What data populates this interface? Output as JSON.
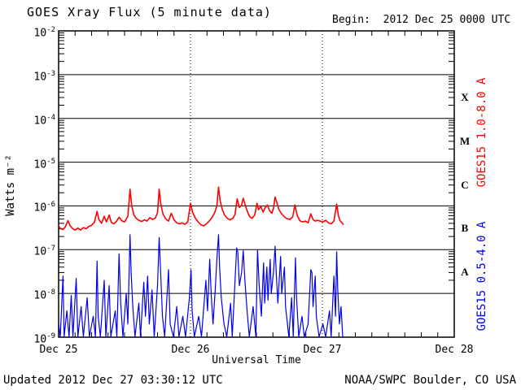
{
  "header": {
    "title": "GOES Xray Flux (5 minute data)",
    "begin_label": "Begin:  2012 Dec 25 0000 UTC"
  },
  "footer": {
    "updated": "Updated 2012 Dec 27 03:30:12 UTC",
    "source": "NOAA/SWPC Boulder, CO USA"
  },
  "colors": {
    "long_wave": "#ff0000",
    "short_wave": "#0000ee",
    "axis": "#000000",
    "background": "#ffffff"
  },
  "chart_data": {
    "type": "line",
    "title": "GOES Xray Flux (5 minute data)",
    "xlabel": "Universal Time",
    "ylabel": "Watts m⁻²",
    "y_scale": "log",
    "y_tick_exponents": [
      -2,
      -3,
      -4,
      -5,
      -6,
      -7,
      -8,
      -9
    ],
    "ylim": [
      1e-09,
      0.01
    ],
    "xlim_hours": [
      0,
      72
    ],
    "begin_time": "2012 Dec 25 0000 UTC",
    "x_ticks": [
      {
        "hour": 0,
        "label": "Dec 25"
      },
      {
        "hour": 24,
        "label": "Dec 26"
      },
      {
        "hour": 48,
        "label": "Dec 27"
      },
      {
        "hour": 72,
        "label": "Dec 28"
      }
    ],
    "day_gridlines_hours": [
      24,
      48
    ],
    "minor_time_tick_hours": 3,
    "flare_class_letters": [
      "X",
      "M",
      "C",
      "B",
      "A"
    ],
    "legend": [
      {
        "name": "GOES15 1.0-8.0 A",
        "color": "#ff0000"
      },
      {
        "name": "GOES15 0.5-4.0 A",
        "color": "#0000ee"
      }
    ],
    "series": [
      {
        "name": "GOES15 1.0-8.0 A",
        "color": "#ff0000",
        "points": [
          [
            0,
            3.5e-07
          ],
          [
            0.4,
            3e-07
          ],
          [
            0.8,
            2.9e-07
          ],
          [
            1.2,
            3.3e-07
          ],
          [
            1.7,
            4.6e-07
          ],
          [
            2.1,
            3.5e-07
          ],
          [
            2.6,
            3e-07
          ],
          [
            3.0,
            2.8e-07
          ],
          [
            3.5,
            3.1e-07
          ],
          [
            4.0,
            2.8e-07
          ],
          [
            4.5,
            3.2e-07
          ],
          [
            5.0,
            3e-07
          ],
          [
            5.5,
            3.4e-07
          ],
          [
            6.0,
            3.6e-07
          ],
          [
            6.5,
            4.2e-07
          ],
          [
            7.0,
            7.5e-07
          ],
          [
            7.3,
            5e-07
          ],
          [
            7.8,
            4e-07
          ],
          [
            8.3,
            5.8e-07
          ],
          [
            8.7,
            4.3e-07
          ],
          [
            9.2,
            6.2e-07
          ],
          [
            9.6,
            4.2e-07
          ],
          [
            10.0,
            3.9e-07
          ],
          [
            10.5,
            4.4e-07
          ],
          [
            11.0,
            5.5e-07
          ],
          [
            11.5,
            4.6e-07
          ],
          [
            12.0,
            4.3e-07
          ],
          [
            12.6,
            5.8e-07
          ],
          [
            13.0,
            2.4e-06
          ],
          [
            13.3,
            1e-06
          ],
          [
            13.7,
            6.2e-07
          ],
          [
            14.1,
            5.2e-07
          ],
          [
            14.6,
            4.7e-07
          ],
          [
            15.1,
            4.4e-07
          ],
          [
            15.6,
            4.8e-07
          ],
          [
            16.1,
            4.5e-07
          ],
          [
            16.6,
            5.4e-07
          ],
          [
            17.1,
            4.9e-07
          ],
          [
            17.6,
            5.3e-07
          ],
          [
            18.0,
            7e-07
          ],
          [
            18.3,
            2.4e-06
          ],
          [
            18.6,
            1.1e-06
          ],
          [
            19.0,
            6.5e-07
          ],
          [
            19.5,
            5e-07
          ],
          [
            20.0,
            4.5e-07
          ],
          [
            20.5,
            6.8e-07
          ],
          [
            21.0,
            4.8e-07
          ],
          [
            21.5,
            4.1e-07
          ],
          [
            22.0,
            3.9e-07
          ],
          [
            22.5,
            4.1e-07
          ],
          [
            23.0,
            3.8e-07
          ],
          [
            23.5,
            4.3e-07
          ],
          [
            24.0,
            1.15e-06
          ],
          [
            24.4,
            7e-07
          ],
          [
            24.9,
            5.2e-07
          ],
          [
            25.4,
            4.3e-07
          ],
          [
            25.9,
            3.7e-07
          ],
          [
            26.4,
            3.5e-07
          ],
          [
            26.9,
            3.9e-07
          ],
          [
            27.4,
            4.5e-07
          ],
          [
            27.9,
            5.4e-07
          ],
          [
            28.4,
            7e-07
          ],
          [
            28.8,
            1e-06
          ],
          [
            29.1,
            2.7e-06
          ],
          [
            29.4,
            1.3e-06
          ],
          [
            29.8,
            8.2e-07
          ],
          [
            30.2,
            6.2e-07
          ],
          [
            30.7,
            5.2e-07
          ],
          [
            31.2,
            4.8e-07
          ],
          [
            31.7,
            5.2e-07
          ],
          [
            32.1,
            6.4e-07
          ],
          [
            32.5,
            1.45e-06
          ],
          [
            32.9,
            9.2e-07
          ],
          [
            33.3,
            1.05e-06
          ],
          [
            33.6,
            1.5e-06
          ],
          [
            34.0,
            1e-06
          ],
          [
            34.4,
            7.2e-07
          ],
          [
            34.8,
            5.6e-07
          ],
          [
            35.2,
            5.2e-07
          ],
          [
            35.7,
            6.2e-07
          ],
          [
            36.1,
            1.15e-06
          ],
          [
            36.4,
            8.2e-07
          ],
          [
            36.8,
            9.8e-07
          ],
          [
            37.2,
            7.2e-07
          ],
          [
            37.6,
            9.2e-07
          ],
          [
            38.0,
            1.05e-06
          ],
          [
            38.4,
            7.8e-07
          ],
          [
            38.8,
            6.8e-07
          ],
          [
            39.1,
            8.8e-07
          ],
          [
            39.4,
            1.6e-06
          ],
          [
            39.7,
            1.2e-06
          ],
          [
            40.1,
            8.2e-07
          ],
          [
            40.6,
            6.6e-07
          ],
          [
            41.1,
            5.6e-07
          ],
          [
            41.6,
            5.1e-07
          ],
          [
            42.1,
            4.9e-07
          ],
          [
            42.6,
            5.6e-07
          ],
          [
            43.0,
            1.05e-06
          ],
          [
            43.4,
            6.2e-07
          ],
          [
            43.9,
            4.6e-07
          ],
          [
            44.4,
            4.3e-07
          ],
          [
            44.9,
            4.5e-07
          ],
          [
            45.4,
            4.1e-07
          ],
          [
            45.9,
            6.6e-07
          ],
          [
            46.3,
            4.9e-07
          ],
          [
            46.7,
            4.5e-07
          ],
          [
            47.1,
            4.7e-07
          ],
          [
            47.6,
            4.5e-07
          ],
          [
            48.1,
            4.3e-07
          ],
          [
            48.6,
            4.7e-07
          ],
          [
            49.1,
            4.1e-07
          ],
          [
            49.6,
            3.9e-07
          ],
          [
            50.1,
            4.5e-07
          ],
          [
            50.6,
            1.1e-06
          ],
          [
            50.9,
            6.2e-07
          ],
          [
            51.2,
            4.6e-07
          ],
          [
            51.5,
            4.2e-07
          ],
          [
            51.8,
            3.8e-07
          ]
        ]
      },
      {
        "name": "GOES15 0.5-4.0 A",
        "color": "#0000ee",
        "points": [
          [
            0,
            2e-09
          ],
          [
            0.3,
            1e-09
          ],
          [
            0.8,
            2.5e-08
          ],
          [
            1.0,
            1e-09
          ],
          [
            1.5,
            4e-09
          ],
          [
            1.9,
            1e-09
          ],
          [
            2.3,
            9e-09
          ],
          [
            2.6,
            1e-09
          ],
          [
            3.2,
            2.2e-08
          ],
          [
            3.5,
            1e-09
          ],
          [
            4.1,
            5e-09
          ],
          [
            4.5,
            1e-09
          ],
          [
            5.2,
            8e-09
          ],
          [
            5.6,
            1e-09
          ],
          [
            6.3,
            3e-09
          ],
          [
            6.7,
            1e-09
          ],
          [
            7.0,
            5.5e-08
          ],
          [
            7.2,
            3e-09
          ],
          [
            7.6,
            1e-09
          ],
          [
            8.3,
            2e-08
          ],
          [
            8.6,
            1e-09
          ],
          [
            9.2,
            1.5e-08
          ],
          [
            9.5,
            1e-09
          ],
          [
            10.3,
            4e-09
          ],
          [
            10.6,
            1e-09
          ],
          [
            11.0,
            8e-08
          ],
          [
            11.3,
            6e-09
          ],
          [
            11.7,
            1e-09
          ],
          [
            12.3,
            1e-08
          ],
          [
            12.6,
            2e-09
          ],
          [
            13.0,
            2.2e-07
          ],
          [
            13.2,
            3e-08
          ],
          [
            13.5,
            5e-09
          ],
          [
            13.9,
            1e-09
          ],
          [
            14.6,
            6e-09
          ],
          [
            14.9,
            1e-09
          ],
          [
            15.5,
            1.8e-08
          ],
          [
            15.8,
            3e-09
          ],
          [
            16.2,
            2.5e-08
          ],
          [
            16.5,
            2e-09
          ],
          [
            17.0,
            1.2e-08
          ],
          [
            17.4,
            1e-09
          ],
          [
            18.0,
            1.5e-08
          ],
          [
            18.3,
            1.9e-07
          ],
          [
            18.6,
            2.5e-08
          ],
          [
            18.9,
            3e-09
          ],
          [
            19.3,
            1e-09
          ],
          [
            20.0,
            3.5e-08
          ],
          [
            20.3,
            2e-09
          ],
          [
            20.9,
            1e-09
          ],
          [
            21.5,
            5e-09
          ],
          [
            21.9,
            1e-09
          ],
          [
            22.6,
            3e-09
          ],
          [
            23.1,
            1e-09
          ],
          [
            23.8,
            8e-09
          ],
          [
            24.1,
            3.5e-08
          ],
          [
            24.3,
            4e-09
          ],
          [
            24.7,
            1e-09
          ],
          [
            25.5,
            3e-09
          ],
          [
            26.0,
            1e-09
          ],
          [
            26.8,
            2e-08
          ],
          [
            27.1,
            4e-09
          ],
          [
            27.5,
            6e-08
          ],
          [
            27.8,
            8e-09
          ],
          [
            28.1,
            2e-09
          ],
          [
            28.5,
            1.2e-08
          ],
          [
            28.8,
            6e-08
          ],
          [
            29.1,
            2.2e-07
          ],
          [
            29.3,
            4e-08
          ],
          [
            29.6,
            8e-09
          ],
          [
            30.1,
            2e-09
          ],
          [
            30.6,
            1e-09
          ],
          [
            31.3,
            6e-09
          ],
          [
            31.6,
            1e-09
          ],
          [
            32.4,
            1.1e-07
          ],
          [
            32.6,
            9e-08
          ],
          [
            32.9,
            1.5e-08
          ],
          [
            33.3,
            3e-08
          ],
          [
            33.6,
            9.5e-08
          ],
          [
            33.9,
            2e-08
          ],
          [
            34.3,
            4e-09
          ],
          [
            34.7,
            1e-09
          ],
          [
            35.4,
            5e-09
          ],
          [
            35.9,
            1e-09
          ],
          [
            36.2,
            1e-07
          ],
          [
            36.5,
            1.5e-08
          ],
          [
            36.9,
            3e-09
          ],
          [
            37.3,
            5e-08
          ],
          [
            37.5,
            6e-09
          ],
          [
            37.9,
            4e-08
          ],
          [
            38.1,
            7e-09
          ],
          [
            38.5,
            6e-08
          ],
          [
            38.7,
            1e-08
          ],
          [
            39.1,
            3e-08
          ],
          [
            39.4,
            1.2e-07
          ],
          [
            39.6,
            3e-08
          ],
          [
            39.9,
            6e-09
          ],
          [
            40.4,
            7e-08
          ],
          [
            40.6,
            1e-08
          ],
          [
            41.1,
            4e-08
          ],
          [
            41.3,
            5e-09
          ],
          [
            41.9,
            1e-09
          ],
          [
            42.4,
            8e-09
          ],
          [
            42.7,
            1e-09
          ],
          [
            43.1,
            6.5e-08
          ],
          [
            43.3,
            8e-09
          ],
          [
            43.7,
            1e-09
          ],
          [
            44.3,
            3e-09
          ],
          [
            44.7,
            1e-09
          ],
          [
            45.4,
            2e-09
          ],
          [
            45.9,
            3.5e-08
          ],
          [
            46.1,
            3e-08
          ],
          [
            46.3,
            5e-09
          ],
          [
            46.7,
            2.5e-08
          ],
          [
            46.9,
            3e-09
          ],
          [
            47.4,
            1e-09
          ],
          [
            48.1,
            2e-09
          ],
          [
            48.6,
            1e-09
          ],
          [
            49.3,
            4e-09
          ],
          [
            49.6,
            1e-09
          ],
          [
            50.1,
            2.5e-08
          ],
          [
            50.4,
            3e-09
          ],
          [
            50.6,
            9e-08
          ],
          [
            50.8,
            1.2e-08
          ],
          [
            51.1,
            2e-09
          ],
          [
            51.4,
            5e-09
          ],
          [
            51.7,
            1e-09
          ]
        ]
      }
    ]
  }
}
